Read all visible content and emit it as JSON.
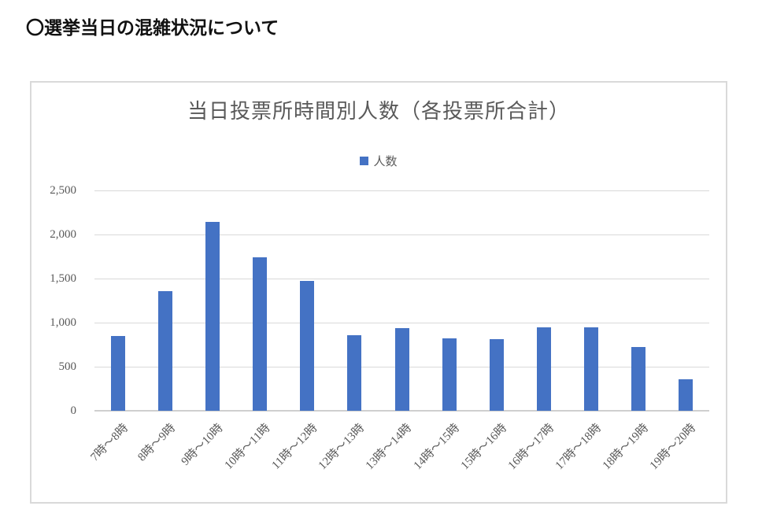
{
  "page": {
    "title": "〇選挙当日の混雑状況について"
  },
  "chart_data": {
    "type": "bar",
    "title": "当日投票所時間別人数（各投票所合計）",
    "legend_label": "人数",
    "legend_position": "top",
    "grid": true,
    "categories": [
      "7時〜8時",
      "8時〜9時",
      "9時〜10時",
      "10時〜11時",
      "11時〜12時",
      "12時〜13時",
      "13時〜14時",
      "14時〜15時",
      "15時〜16時",
      "16時〜17時",
      "17時〜18時",
      "18時〜19時",
      "19時〜20時"
    ],
    "series": [
      {
        "name": "人数",
        "values": [
          850,
          1360,
          2140,
          1740,
          1475,
          855,
          940,
          825,
          810,
          950,
          945,
          720,
          360
        ]
      }
    ],
    "xlabel": "",
    "ylabel": "",
    "ylim": [
      0,
      2500
    ],
    "ytick_step": 500,
    "ytick_labels": [
      "0",
      "500",
      "1,000",
      "1,500",
      "2,000",
      "2,500"
    ],
    "colors": {
      "bar": "#4472C4",
      "gridline": "#D9D9D9",
      "axis_line": "#CFCFCF",
      "text": "#595959",
      "chart_border": "#D9D9D9"
    }
  }
}
